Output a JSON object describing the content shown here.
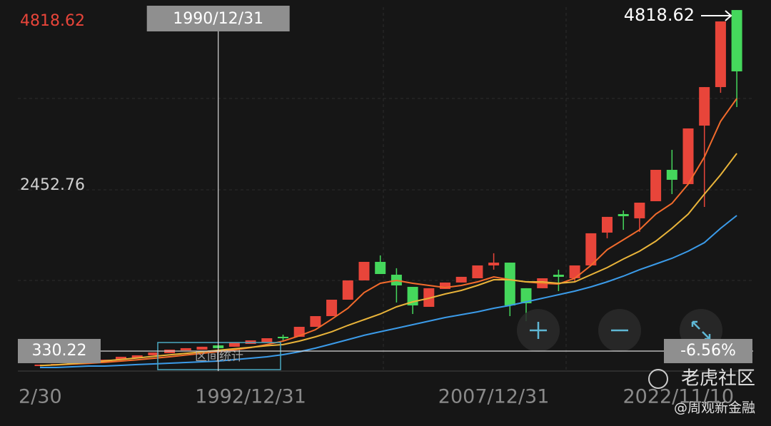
{
  "chart_data": {
    "type": "candlestick",
    "max_label": "4818.62",
    "mid_label": "2452.76",
    "last_label": "4818.62",
    "ylim": [
      67,
      4818.62
    ],
    "categories": [
      "2/30",
      null,
      null,
      null,
      null,
      null,
      null,
      null,
      null,
      null,
      null,
      null,
      null,
      "1992/12/31",
      null,
      null,
      null,
      null,
      null,
      null,
      null,
      null,
      null,
      null,
      null,
      null,
      null,
      null,
      "2007/12/31",
      null,
      null,
      null,
      null,
      null,
      null,
      null,
      null,
      null,
      null,
      null,
      null,
      null,
      null,
      "2022/11/10"
    ],
    "up_color": "#e8453a",
    "down_color": "#45d75c",
    "candles": [
      [
        133,
        152,
        133,
        152
      ],
      [
        142,
        161,
        142,
        161
      ],
      [
        152,
        170,
        152,
        170
      ],
      [
        170,
        198,
        170,
        198
      ],
      [
        189,
        217,
        189,
        217
      ],
      [
        217,
        255,
        217,
        255
      ],
      [
        236,
        274,
        236,
        274
      ],
      [
        274,
        311,
        274,
        311
      ],
      [
        302,
        349,
        302,
        349
      ],
      [
        340,
        368,
        340,
        368
      ],
      [
        349,
        387,
        349,
        387
      ],
      [
        405,
        405,
        368,
        368
      ],
      [
        387,
        443,
        387,
        443
      ],
      [
        424,
        471,
        424,
        471
      ],
      [
        443,
        499,
        443,
        499
      ],
      [
        518,
        546,
        461,
        499
      ],
      [
        518,
        649,
        518,
        649
      ],
      [
        649,
        790,
        649,
        790
      ],
      [
        790,
        1006,
        790,
        1006
      ],
      [
        1006,
        1260,
        1006,
        1260
      ],
      [
        1260,
        1504,
        1260,
        1504
      ],
      [
        1504,
        1589,
        1344,
        1344
      ],
      [
        1335,
        1420,
        969,
        1194
      ],
      [
        1175,
        1175,
        818,
        931
      ],
      [
        912,
        1157,
        912,
        1157
      ],
      [
        1147,
        1232,
        1147,
        1232
      ],
      [
        1232,
        1307,
        1232,
        1307
      ],
      [
        1288,
        1457,
        1288,
        1457
      ],
      [
        1457,
        1617,
        1401,
        1494
      ],
      [
        1494,
        1494,
        790,
        931
      ],
      [
        1157,
        1157,
        724,
        959
      ],
      [
        1157,
        1288,
        1157,
        1288
      ],
      [
        1335,
        1401,
        1119,
        1307
      ],
      [
        1288,
        1457,
        1241,
        1457
      ],
      [
        1457,
        1880,
        1457,
        1880
      ],
      [
        1889,
        2096,
        1814,
        2096
      ],
      [
        2133,
        2180,
        1926,
        2105
      ],
      [
        2077,
        2283,
        1898,
        2283
      ],
      [
        2302,
        2715,
        2302,
        2715
      ],
      [
        2715,
        2978,
        2396,
        2584
      ],
      [
        2527,
        3260,
        2527,
        3260
      ],
      [
        3297,
        3804,
        2227,
        3804
      ],
      [
        3804,
        4668,
        3729,
        4668
      ],
      [
        4818,
        4818,
        3541,
        4011
      ]
    ],
    "series": [
      {
        "color": "#f26b2c",
        "values": [
          140,
          148,
          158,
          168,
          182,
          198,
          215,
          235,
          255,
          278,
          300,
          322,
          345,
          375,
          415,
          461,
          530,
          612,
          750,
          893,
          1100,
          1222,
          1260,
          1222,
          1194,
          1166,
          1194,
          1241,
          1307,
          1269,
          1241,
          1222,
          1213,
          1288,
          1457,
          1664,
          1795,
          1926,
          2133,
          2274,
          2527,
          2884,
          3354,
          3654
        ]
      },
      {
        "color": "#e9b43a",
        "values": [
          140,
          150,
          165,
          180,
          200,
          220,
          240,
          260,
          280,
          300,
          320,
          340,
          360,
          380,
          400,
          415,
          461,
          518,
          584,
          668,
          743,
          818,
          912,
          978,
          1025,
          1081,
          1128,
          1194,
          1269,
          1269,
          1241,
          1241,
          1222,
          1241,
          1335,
          1429,
          1541,
          1645,
          1776,
          1945,
          2133,
          2396,
          2649,
          2931
        ]
      },
      {
        "color": "#3b9be9",
        "values": [
          114,
          114,
          123,
          133,
          133,
          142,
          152,
          161,
          170,
          180,
          189,
          198,
          217,
          236,
          255,
          283,
          321,
          368,
          424,
          480,
          537,
          584,
          630,
          677,
          724,
          771,
          809,
          846,
          893,
          931,
          978,
          1025,
          1072,
          1119,
          1175,
          1241,
          1316,
          1401,
          1476,
          1551,
          1645,
          1757,
          1945,
          2114
        ]
      }
    ],
    "crosshair": {
      "date": "1990/12/31",
      "index": 11,
      "value": 330.22,
      "value_label": "330.22",
      "change_label": "-6.56%"
    },
    "range_button": "区间统计",
    "watermark": "老虎社区",
    "author": "@周观新金融"
  }
}
